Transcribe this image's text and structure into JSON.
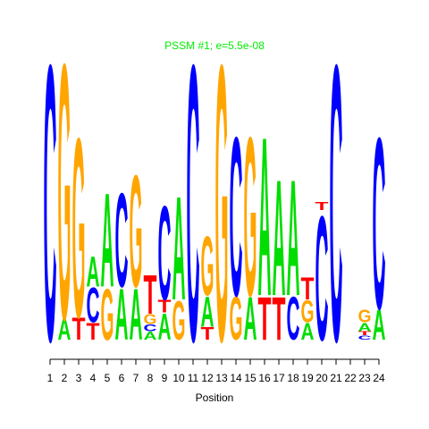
{
  "chart_data": {
    "type": "logo",
    "title": "PSSM #1; e=5.5e-08",
    "title_color": "#00ee00",
    "xlabel": "Position",
    "categories": [
      1,
      2,
      3,
      4,
      5,
      6,
      7,
      8,
      9,
      10,
      11,
      12,
      13,
      14,
      15,
      16,
      17,
      18,
      19,
      20,
      21,
      22,
      23,
      24
    ],
    "ylim": [
      0,
      2
    ],
    "colors": {
      "A": "#00dd00",
      "C": "#0000ff",
      "G": "#ffa500",
      "T": "#ff0000"
    },
    "stacks": [
      [
        {
          "letter": "C",
          "value": 2.0
        }
      ],
      [
        {
          "letter": "A",
          "value": 0.15
        },
        {
          "letter": "G",
          "value": 1.85
        }
      ],
      [
        {
          "letter": "T",
          "value": 0.16
        },
        {
          "letter": "G",
          "value": 1.3
        }
      ],
      [
        {
          "letter": "T",
          "value": 0.12
        },
        {
          "letter": "C",
          "value": 0.25
        },
        {
          "letter": "A",
          "value": 0.22
        }
      ],
      [
        {
          "letter": "G",
          "value": 0.37
        },
        {
          "letter": "A",
          "value": 0.68
        }
      ],
      [
        {
          "letter": "A",
          "value": 0.37
        },
        {
          "letter": "C",
          "value": 0.68
        }
      ],
      [
        {
          "letter": "A",
          "value": 0.37
        },
        {
          "letter": "G",
          "value": 0.81
        }
      ],
      [
        {
          "letter": "A",
          "value": 0.06
        },
        {
          "letter": "C",
          "value": 0.05
        },
        {
          "letter": "G",
          "value": 0.07
        },
        {
          "letter": "T",
          "value": 0.28
        }
      ],
      [
        {
          "letter": "A",
          "value": 0.19
        },
        {
          "letter": "T",
          "value": 0.09
        },
        {
          "letter": "C",
          "value": 0.68
        }
      ],
      [
        {
          "letter": "G",
          "value": 0.28
        },
        {
          "letter": "A",
          "value": 0.75
        }
      ],
      [
        {
          "letter": "C",
          "value": 2.0
        }
      ],
      [
        {
          "letter": "T",
          "value": 0.09
        },
        {
          "letter": "A",
          "value": 0.22
        },
        {
          "letter": "G",
          "value": 0.43
        }
      ],
      [
        {
          "letter": "G",
          "value": 2.0
        }
      ],
      [
        {
          "letter": "G",
          "value": 0.31
        },
        {
          "letter": "C",
          "value": 1.15
        }
      ],
      [
        {
          "letter": "A",
          "value": 0.31
        },
        {
          "letter": "G",
          "value": 1.15
        }
      ],
      [
        {
          "letter": "T",
          "value": 0.31
        },
        {
          "letter": "A",
          "value": 1.15
        }
      ],
      [
        {
          "letter": "T",
          "value": 0.31
        },
        {
          "letter": "A",
          "value": 0.84
        }
      ],
      [
        {
          "letter": "C",
          "value": 0.31
        },
        {
          "letter": "A",
          "value": 0.84
        }
      ],
      [
        {
          "letter": "A",
          "value": 0.12
        },
        {
          "letter": "G",
          "value": 0.16
        },
        {
          "letter": "T",
          "value": 0.16
        }
      ],
      [
        {
          "letter": "C",
          "value": 0.9
        },
        {
          "letter": "T",
          "value": 0.06
        }
      ],
      [
        {
          "letter": "C",
          "value": 2.0
        }
      ],
      [],
      [
        {
          "letter": "C",
          "value": 0.03
        },
        {
          "letter": "T",
          "value": 0.03
        },
        {
          "letter": "A",
          "value": 0.06
        },
        {
          "letter": "G",
          "value": 0.09
        }
      ],
      [
        {
          "letter": "A",
          "value": 0.22
        },
        {
          "letter": "C",
          "value": 1.24
        }
      ]
    ]
  }
}
